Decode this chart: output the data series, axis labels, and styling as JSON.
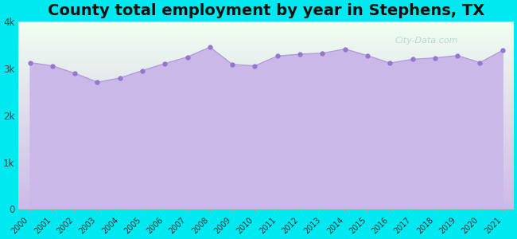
{
  "title": "County total employment by year in Stephens, TX",
  "title_fontsize": 14,
  "title_fontweight": "bold",
  "years": [
    2000,
    2001,
    2002,
    2003,
    2004,
    2005,
    2006,
    2007,
    2008,
    2009,
    2010,
    2011,
    2012,
    2013,
    2014,
    2015,
    2016,
    2017,
    2018,
    2019,
    2020,
    2021
  ],
  "values": [
    3130,
    3060,
    2900,
    2710,
    2800,
    2960,
    3110,
    3250,
    3460,
    3090,
    3060,
    3270,
    3310,
    3330,
    3420,
    3280,
    3120,
    3200,
    3230,
    3280,
    3130,
    3390
  ],
  "line_color": "#b39ddb",
  "fill_color": "#c9b8e8",
  "marker_color": "#9575cd",
  "marker_size": 3.5,
  "figure_bg": "#00e8f0",
  "plot_bg_top": "#efffef",
  "plot_bg_bottom": "#c9b8e8",
  "ylim": [
    0,
    4000
  ],
  "yticks": [
    0,
    1000,
    2000,
    3000,
    4000
  ],
  "ytick_labels": [
    "0",
    "1k",
    "2k",
    "3k",
    "4k"
  ],
  "watermark": "City-Data.com"
}
